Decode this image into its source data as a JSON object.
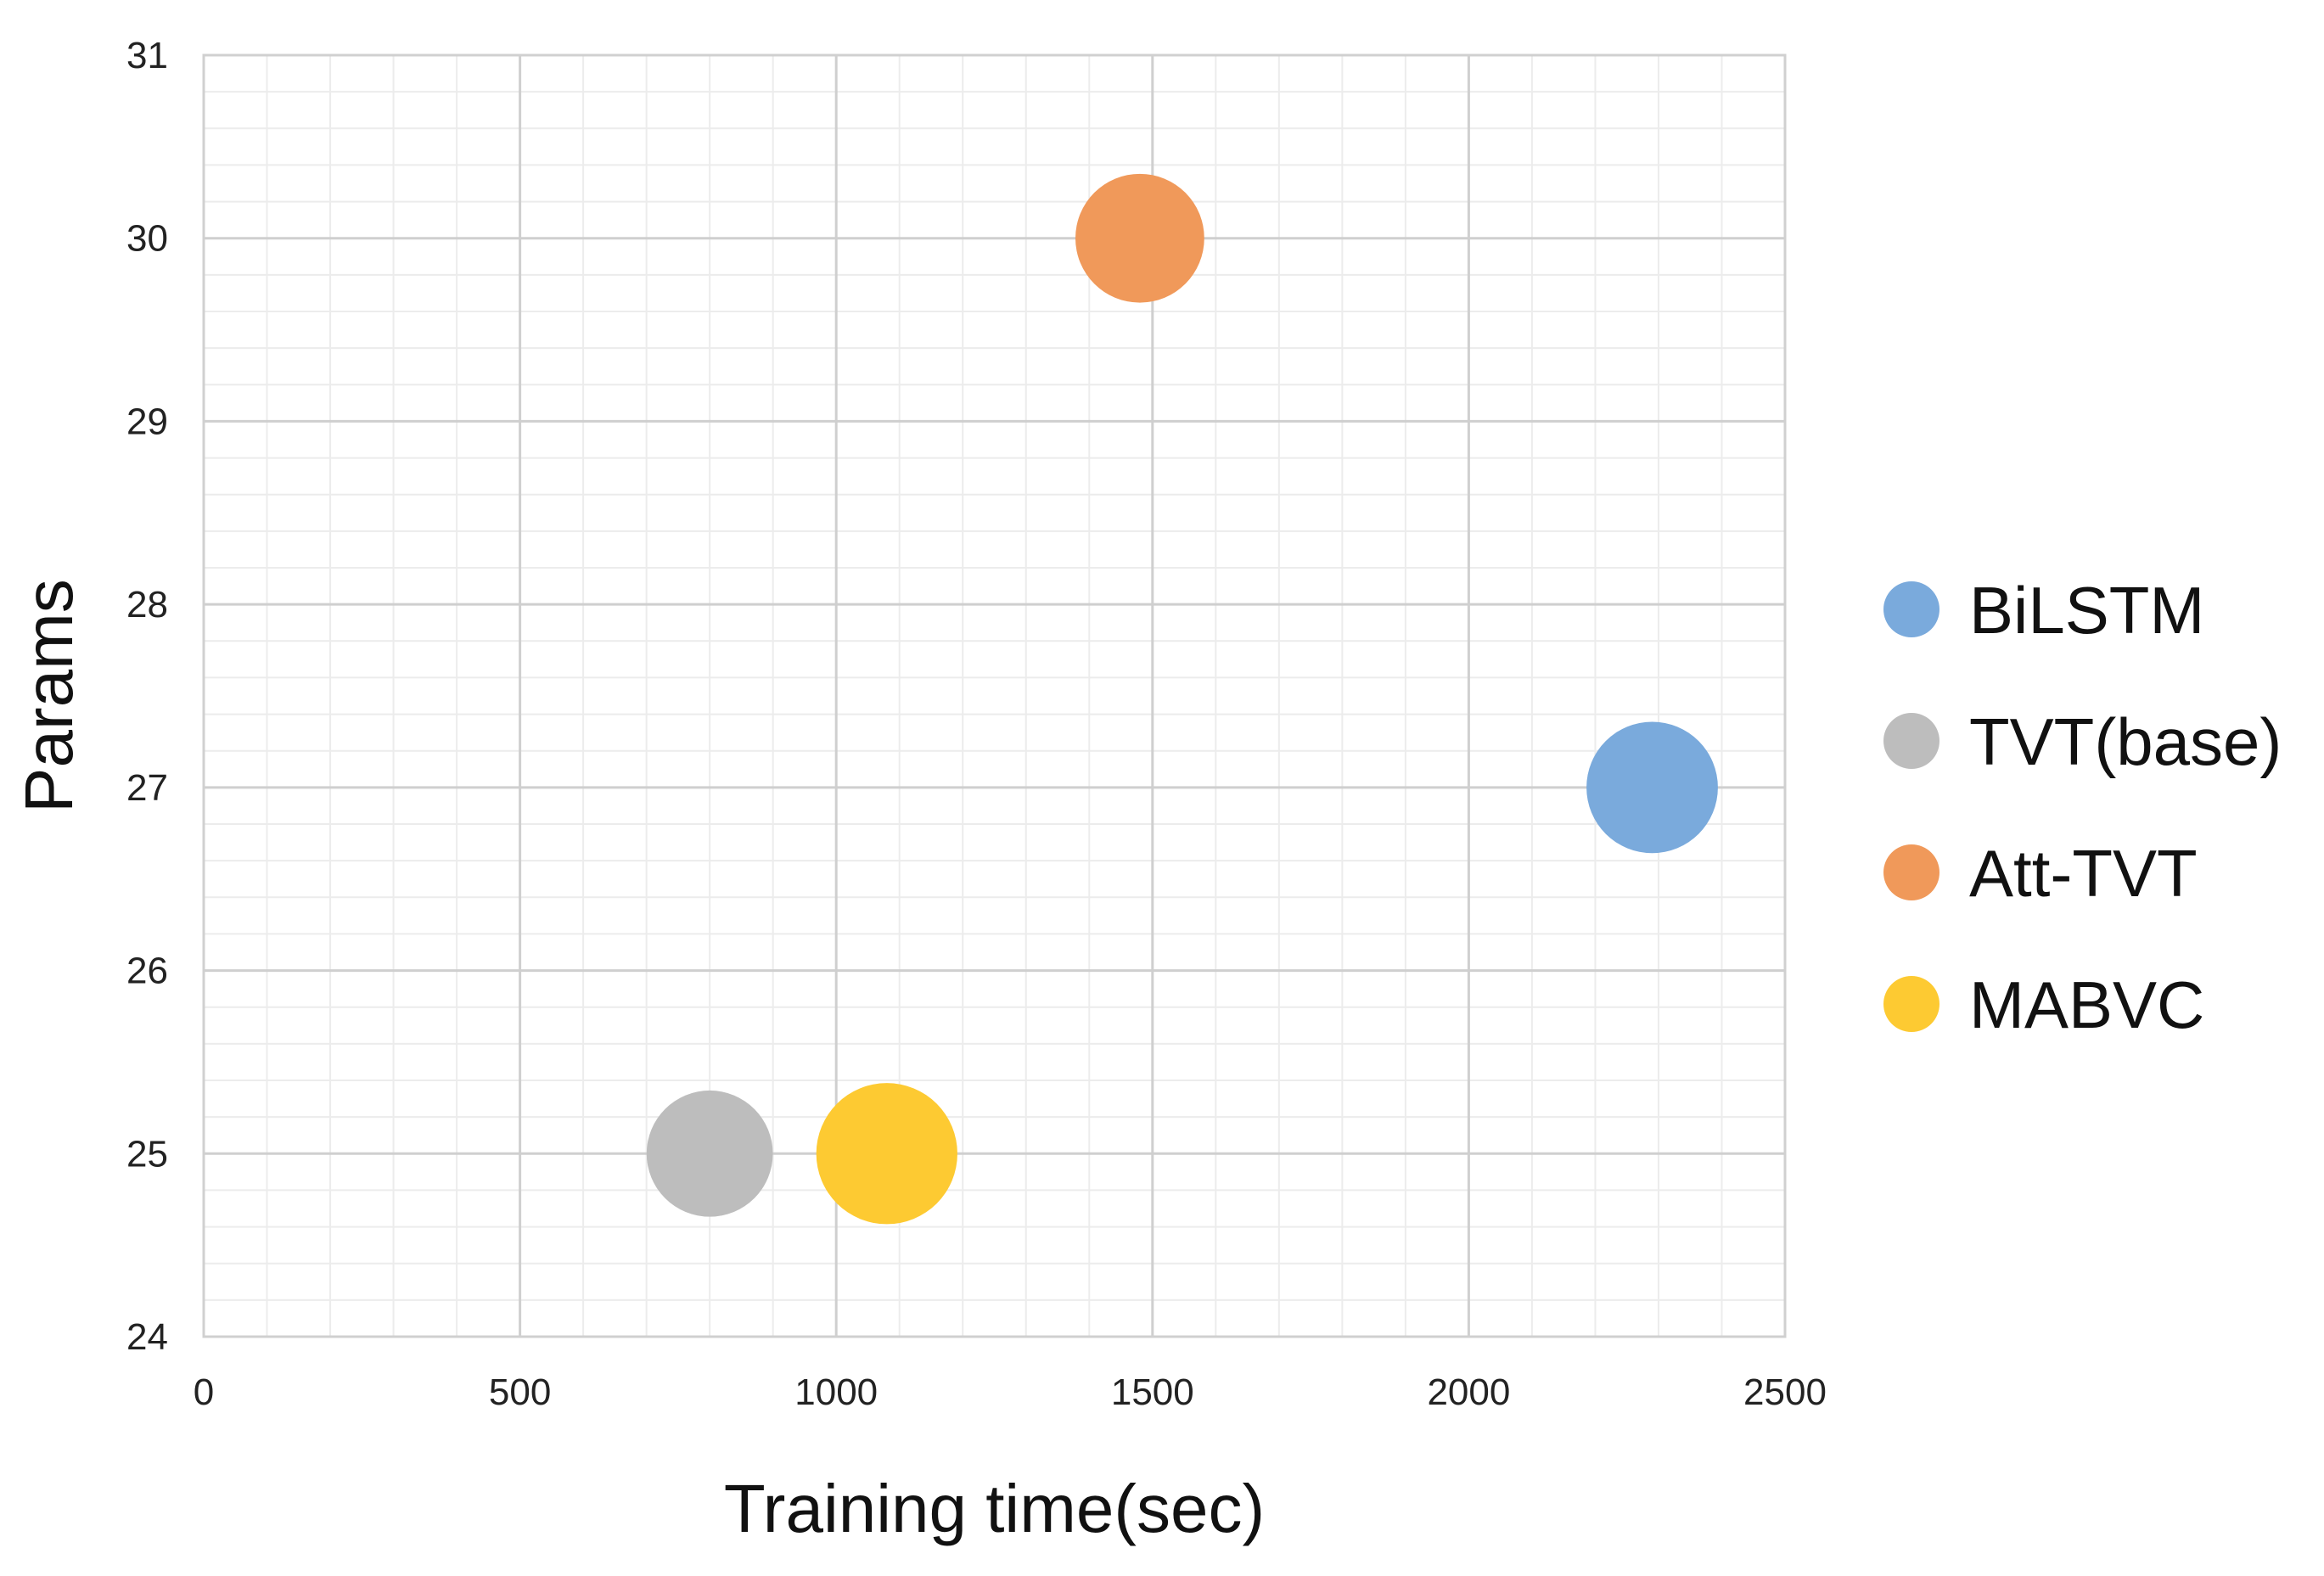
{
  "chart_data": {
    "type": "scatter",
    "variant": "bubble",
    "xlabel": "Training time(sec)",
    "ylabel": "Params",
    "xlim": [
      0,
      2500
    ],
    "ylim": [
      24,
      31
    ],
    "xticks": [
      "0",
      "500",
      "1000",
      "1500",
      "2000",
      "2500"
    ],
    "yticks": [
      "24",
      "25",
      "26",
      "27",
      "28",
      "29",
      "30",
      "31"
    ],
    "grid": "major and minor",
    "legend_position": "right",
    "series": [
      {
        "name": "BiLSTM",
        "x": 2290,
        "y": 27,
        "size": 2.6,
        "color": "#7aaadc"
      },
      {
        "name": "TVT(base)",
        "x": 800,
        "y": 25,
        "size": 2.4,
        "color": "#bdbdbd"
      },
      {
        "name": "Att-TVT",
        "x": 1480,
        "y": 30,
        "size": 2.5,
        "color": "#f0995a"
      },
      {
        "name": "MABVC",
        "x": 1080,
        "y": 25,
        "size": 3.0,
        "color": "#fdca32"
      }
    ]
  }
}
